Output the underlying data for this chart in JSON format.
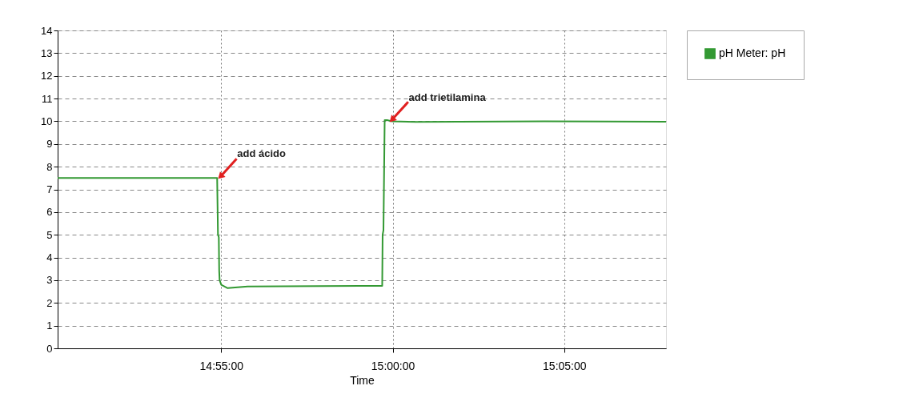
{
  "chart_data": {
    "type": "line",
    "xlabel": "Time",
    "x": [
      14.8372,
      14.9147,
      14.9151,
      14.9155,
      14.9157,
      14.9159,
      14.9167,
      14.9198,
      14.9295,
      14.984,
      14.9949,
      14.9951,
      14.9955,
      14.9961,
      14.9973,
      14.9996,
      15.0113,
      15.0736,
      15.1328
    ],
    "series": [
      {
        "name": "pH Meter: pH",
        "color": "#339933",
        "values": [
          7.5,
          7.5,
          5.0,
          4.9,
          3.4,
          3.0,
          2.8,
          2.65,
          2.72,
          2.75,
          2.75,
          5.0,
          5.2,
          10.05,
          10.05,
          10.0,
          9.97,
          10.0,
          9.98
        ]
      }
    ],
    "xlim": [
      14.8372,
      15.1328
    ],
    "xticks": [
      {
        "value": 14.91667,
        "label": "14:55:00"
      },
      {
        "value": 15.0,
        "label": "15:00:00"
      },
      {
        "value": 15.08333,
        "label": "15:05:00"
      }
    ],
    "ylim": [
      0,
      14
    ],
    "yticks": [
      0,
      1,
      2,
      3,
      4,
      5,
      6,
      7,
      8,
      9,
      10,
      11,
      12,
      13,
      14
    ],
    "annotations": [
      {
        "text": "add ácido",
        "x": 14.91667,
        "y": 7.6
      },
      {
        "text": "add trietilamina",
        "x": 15.0,
        "y": 10.1
      }
    ],
    "grid": true,
    "legend": "top right",
    "marker": "none",
    "line_style": "solid"
  }
}
